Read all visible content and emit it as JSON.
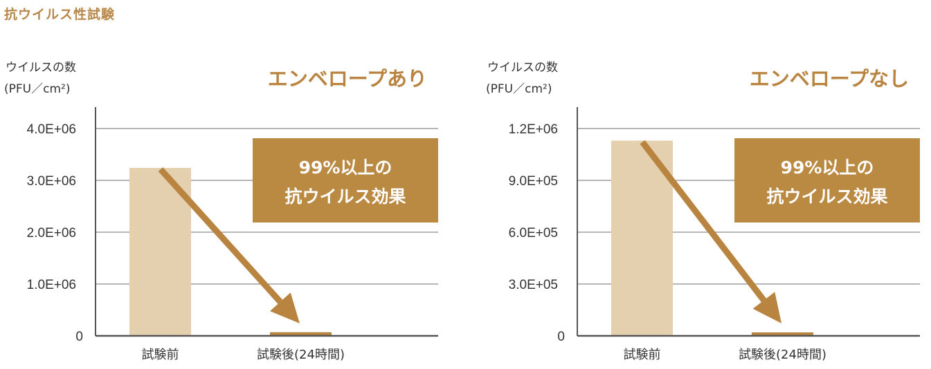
{
  "page_title": "抗ウイルス性試験",
  "colors": {
    "accent": "#ba8a43",
    "bar_before": "#e4cfae",
    "bar_after": "#b8843f",
    "grid": "#8a8a8a",
    "axis": "#555555"
  },
  "chart_data": [
    {
      "type": "bar",
      "title": "エンベロープあり",
      "ylabel": [
        "ウイルスの数",
        "(PFU／cm²)"
      ],
      "categories": [
        "試験前",
        "試験後(24時間)"
      ],
      "values": [
        3240000,
        70000
      ],
      "ylim": [
        0,
        4000000
      ],
      "yticks": [
        0,
        1000000,
        2000000,
        3000000,
        4000000
      ],
      "ytick_labels": [
        "0",
        "1.0E+06",
        "2.0E+06",
        "3.0E+06",
        "4.0E+06"
      ],
      "grid": true,
      "annotation": [
        "99%以上の",
        "抗ウイルス効果"
      ]
    },
    {
      "type": "bar",
      "title": "エンベロープなし",
      "ylabel": [
        "ウイルスの数",
        "(PFU／cm²)"
      ],
      "categories": [
        "試験前",
        "試験後(24時間)"
      ],
      "values": [
        1130000,
        20000
      ],
      "ylim": [
        0,
        1200000
      ],
      "yticks": [
        0,
        300000,
        600000,
        900000,
        1200000
      ],
      "ytick_labels": [
        "0",
        "3.0E+05",
        "6.0E+05",
        "9.0E+05",
        "1.2E+06"
      ],
      "grid": true,
      "annotation": [
        "99%以上の",
        "抗ウイルス効果"
      ]
    }
  ]
}
